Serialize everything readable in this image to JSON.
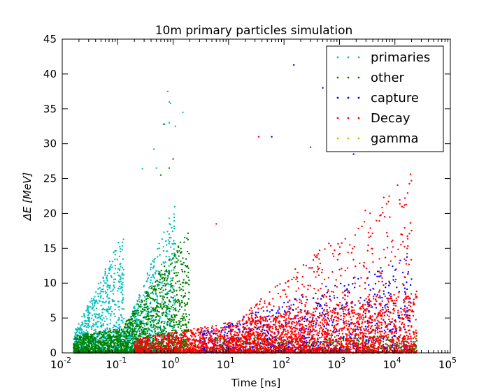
{
  "chart_data": {
    "type": "scatter",
    "title": "10m primary particles simulation",
    "xlabel": "Time [ns]",
    "ylabel": "ΔE [MeV]",
    "x_scale": "log",
    "xlim": [
      0.01,
      100000
    ],
    "ylim": [
      0,
      45
    ],
    "x_ticks": [
      {
        "value": 0.01,
        "base": "10",
        "exp": "-2"
      },
      {
        "value": 0.1,
        "base": "10",
        "exp": "-1"
      },
      {
        "value": 1,
        "base": "10",
        "exp": "0"
      },
      {
        "value": 10,
        "base": "10",
        "exp": "1"
      },
      {
        "value": 100,
        "base": "10",
        "exp": "2"
      },
      {
        "value": 1000,
        "base": "10",
        "exp": "3"
      },
      {
        "value": 10000,
        "base": "10",
        "exp": "4"
      },
      {
        "value": 100000,
        "base": "10",
        "exp": "5"
      }
    ],
    "y_ticks": [
      "0",
      "5",
      "10",
      "15",
      "20",
      "25",
      "30",
      "35",
      "40",
      "45"
    ],
    "legend_position": "top-right",
    "grid": false,
    "series": [
      {
        "name": "primaries",
        "color": "#00bfbf",
        "clusters": [
          {
            "x_range": [
              0.016,
              0.13
            ],
            "y_peak": [
              2.8,
              17.5
            ],
            "density": 900
          },
          {
            "x_range": [
              0.13,
              1.15
            ],
            "y_peak": [
              3.0,
              22.0
            ],
            "density": 700
          }
        ],
        "points": [
          [
            0.5,
            26.5
          ],
          [
            0.28,
            26.4
          ],
          [
            0.8,
            37.5
          ],
          [
            0.85,
            36
          ],
          [
            0.9,
            35.8
          ],
          [
            1.5,
            34.5
          ],
          [
            0.85,
            33
          ],
          [
            1.1,
            32.5
          ],
          [
            0.7,
            32.8
          ],
          [
            0.45,
            29.2
          ]
        ]
      },
      {
        "name": "other",
        "color": "#008000",
        "clusters": [
          {
            "x_range": [
              0.016,
              0.13
            ],
            "y_peak": [
              2.5,
              3.5
            ],
            "density": 700
          },
          {
            "x_range": [
              0.13,
              2.0
            ],
            "y_peak": [
              4.0,
              18.0
            ],
            "density": 1100
          },
          {
            "x_range": [
              1.0,
              25000
            ],
            "y_peak": [
              2.0,
              2.5
            ],
            "density": 600
          }
        ],
        "points": [
          [
            0.68,
            32.8
          ],
          [
            0.85,
            26.5
          ],
          [
            1.0,
            27.8
          ],
          [
            0.6,
            25.5
          ]
        ]
      },
      {
        "name": "capture",
        "color": "#0000ff",
        "clusters": [
          {
            "x_range": [
              3.0,
              20000
            ],
            "y_peak": [
              3.0,
              14.0
            ],
            "density": 800
          }
        ],
        "points": [
          [
            150,
            41.3
          ],
          [
            500,
            38
          ],
          [
            900,
            35.8
          ],
          [
            60,
            31
          ],
          [
            1500,
            33
          ],
          [
            1800,
            28.5
          ],
          [
            3000,
            29.3
          ]
        ]
      },
      {
        "name": "Decay",
        "color": "#ff0000",
        "clusters": [
          {
            "x_range": [
              0.2,
              25000
            ],
            "y_peak": [
              2.0,
              9.0
            ],
            "density": 2600
          },
          {
            "x_range": [
              10,
              20000
            ],
            "y_peak": [
              4.0,
              26.0
            ],
            "density": 900
          }
        ],
        "points": [
          [
            35,
            31
          ],
          [
            300,
            29.5
          ],
          [
            800,
            36
          ],
          [
            4000,
            31.2
          ],
          [
            2000,
            30
          ],
          [
            6,
            18.5
          ]
        ]
      },
      {
        "name": "gamma",
        "color": "#bfbf00",
        "clusters": [],
        "points": []
      }
    ]
  }
}
